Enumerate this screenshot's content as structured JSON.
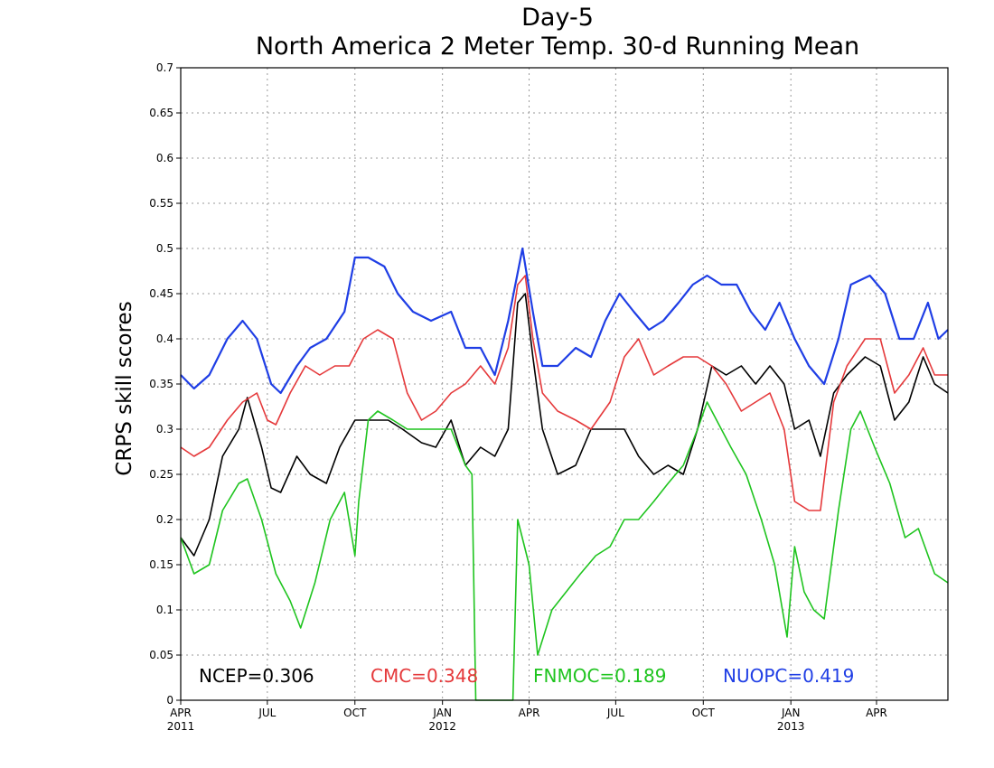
{
  "chart_data": {
    "type": "line",
    "title": "Day-5",
    "subtitle": "North America 2 Meter Temp. 30-d Running Mean",
    "ylabel": "CRPS skill scores",
    "xlabel": "",
    "ylim": [
      0,
      0.7
    ],
    "xlim": [
      "2011-04-01",
      "2013-06-15"
    ],
    "y_ticks": [
      "0",
      "0.05",
      "0.1",
      "0.15",
      "0.2",
      "0.25",
      "0.3",
      "0.35",
      "0.4",
      "0.45",
      "0.5",
      "0.55",
      "0.6",
      "0.65",
      "0.7"
    ],
    "x_ticks": [
      {
        "date": "2011-04-01",
        "label": "APR",
        "year": "2011"
      },
      {
        "date": "2011-07-01",
        "label": "JUL",
        "year": ""
      },
      {
        "date": "2011-10-01",
        "label": "OCT",
        "year": ""
      },
      {
        "date": "2012-01-01",
        "label": "JAN",
        "year": "2012"
      },
      {
        "date": "2012-04-01",
        "label": "APR",
        "year": ""
      },
      {
        "date": "2012-07-01",
        "label": "JUL",
        "year": ""
      },
      {
        "date": "2012-10-01",
        "label": "OCT",
        "year": ""
      },
      {
        "date": "2013-01-01",
        "label": "JAN",
        "year": "2013"
      },
      {
        "date": "2013-04-01",
        "label": "APR",
        "year": ""
      }
    ],
    "grid": true,
    "legend_position": "bottom",
    "series": [
      {
        "name": "NCEP",
        "legend": "NCEP=0.306",
        "color": "#000000",
        "points": [
          [
            "2011-04-01",
            0.18
          ],
          [
            "2011-04-15",
            0.16
          ],
          [
            "2011-05-01",
            0.2
          ],
          [
            "2011-05-15",
            0.27
          ],
          [
            "2011-06-01",
            0.3
          ],
          [
            "2011-06-10",
            0.335
          ],
          [
            "2011-06-25",
            0.28
          ],
          [
            "2011-07-05",
            0.235
          ],
          [
            "2011-07-15",
            0.23
          ],
          [
            "2011-08-01",
            0.27
          ],
          [
            "2011-08-15",
            0.25
          ],
          [
            "2011-09-01",
            0.24
          ],
          [
            "2011-09-15",
            0.28
          ],
          [
            "2011-10-01",
            0.31
          ],
          [
            "2011-10-20",
            0.31
          ],
          [
            "2011-11-05",
            0.31
          ],
          [
            "2011-11-20",
            0.3
          ],
          [
            "2011-12-10",
            0.285
          ],
          [
            "2011-12-25",
            0.28
          ],
          [
            "2012-01-10",
            0.31
          ],
          [
            "2012-01-25",
            0.26
          ],
          [
            "2012-02-10",
            0.28
          ],
          [
            "2012-02-25",
            0.27
          ],
          [
            "2012-03-10",
            0.3
          ],
          [
            "2012-03-20",
            0.44
          ],
          [
            "2012-03-28",
            0.45
          ],
          [
            "2012-04-05",
            0.38
          ],
          [
            "2012-04-15",
            0.3
          ],
          [
            "2012-05-01",
            0.25
          ],
          [
            "2012-05-20",
            0.26
          ],
          [
            "2012-06-05",
            0.3
          ],
          [
            "2012-06-25",
            0.3
          ],
          [
            "2012-07-10",
            0.3
          ],
          [
            "2012-07-25",
            0.27
          ],
          [
            "2012-08-10",
            0.25
          ],
          [
            "2012-08-25",
            0.26
          ],
          [
            "2012-09-10",
            0.25
          ],
          [
            "2012-09-25",
            0.3
          ],
          [
            "2012-10-10",
            0.37
          ],
          [
            "2012-10-25",
            0.36
          ],
          [
            "2012-11-10",
            0.37
          ],
          [
            "2012-11-25",
            0.35
          ],
          [
            "2012-12-10",
            0.37
          ],
          [
            "2012-12-25",
            0.35
          ],
          [
            "2013-01-05",
            0.3
          ],
          [
            "2013-01-20",
            0.31
          ],
          [
            "2013-02-01",
            0.27
          ],
          [
            "2013-02-15",
            0.34
          ],
          [
            "2013-03-01",
            0.36
          ],
          [
            "2013-03-20",
            0.38
          ],
          [
            "2013-04-05",
            0.37
          ],
          [
            "2013-04-20",
            0.31
          ],
          [
            "2013-05-05",
            0.33
          ],
          [
            "2013-05-20",
            0.38
          ],
          [
            "2013-06-01",
            0.35
          ],
          [
            "2013-06-15",
            0.34
          ]
        ]
      },
      {
        "name": "CMC",
        "legend": "CMC=0.348",
        "color": "#e5393b",
        "points": [
          [
            "2011-04-01",
            0.28
          ],
          [
            "2011-04-15",
            0.27
          ],
          [
            "2011-05-01",
            0.28
          ],
          [
            "2011-05-20",
            0.31
          ],
          [
            "2011-06-05",
            0.33
          ],
          [
            "2011-06-20",
            0.34
          ],
          [
            "2011-07-01",
            0.31
          ],
          [
            "2011-07-10",
            0.305
          ],
          [
            "2011-07-25",
            0.34
          ],
          [
            "2011-08-10",
            0.37
          ],
          [
            "2011-08-25",
            0.36
          ],
          [
            "2011-09-10",
            0.37
          ],
          [
            "2011-09-25",
            0.37
          ],
          [
            "2011-10-10",
            0.4
          ],
          [
            "2011-10-25",
            0.41
          ],
          [
            "2011-11-10",
            0.4
          ],
          [
            "2011-11-25",
            0.34
          ],
          [
            "2011-12-10",
            0.31
          ],
          [
            "2011-12-25",
            0.32
          ],
          [
            "2012-01-10",
            0.34
          ],
          [
            "2012-01-25",
            0.35
          ],
          [
            "2012-02-10",
            0.37
          ],
          [
            "2012-02-25",
            0.35
          ],
          [
            "2012-03-10",
            0.39
          ],
          [
            "2012-03-20",
            0.46
          ],
          [
            "2012-03-28",
            0.47
          ],
          [
            "2012-04-05",
            0.4
          ],
          [
            "2012-04-15",
            0.34
          ],
          [
            "2012-05-01",
            0.32
          ],
          [
            "2012-05-20",
            0.31
          ],
          [
            "2012-06-05",
            0.3
          ],
          [
            "2012-06-25",
            0.33
          ],
          [
            "2012-07-10",
            0.38
          ],
          [
            "2012-07-25",
            0.4
          ],
          [
            "2012-08-10",
            0.36
          ],
          [
            "2012-08-25",
            0.37
          ],
          [
            "2012-09-10",
            0.38
          ],
          [
            "2012-09-25",
            0.38
          ],
          [
            "2012-10-10",
            0.37
          ],
          [
            "2012-10-25",
            0.35
          ],
          [
            "2012-11-10",
            0.32
          ],
          [
            "2012-11-25",
            0.33
          ],
          [
            "2012-12-10",
            0.34
          ],
          [
            "2012-12-25",
            0.3
          ],
          [
            "2013-01-05",
            0.22
          ],
          [
            "2013-01-20",
            0.21
          ],
          [
            "2013-02-01",
            0.21
          ],
          [
            "2013-02-15",
            0.33
          ],
          [
            "2013-03-01",
            0.37
          ],
          [
            "2013-03-20",
            0.4
          ],
          [
            "2013-04-05",
            0.4
          ],
          [
            "2013-04-20",
            0.34
          ],
          [
            "2013-05-05",
            0.36
          ],
          [
            "2013-05-20",
            0.39
          ],
          [
            "2013-06-01",
            0.36
          ],
          [
            "2013-06-15",
            0.36
          ]
        ]
      },
      {
        "name": "FNMOC",
        "legend": "FNMOC=0.189",
        "color": "#1fc41f",
        "points": [
          [
            "2011-04-01",
            0.18
          ],
          [
            "2011-04-15",
            0.14
          ],
          [
            "2011-05-01",
            0.15
          ],
          [
            "2011-05-15",
            0.21
          ],
          [
            "2011-06-01",
            0.24
          ],
          [
            "2011-06-10",
            0.245
          ],
          [
            "2011-06-25",
            0.2
          ],
          [
            "2011-07-10",
            0.14
          ],
          [
            "2011-07-25",
            0.11
          ],
          [
            "2011-08-05",
            0.08
          ],
          [
            "2011-08-20",
            0.13
          ],
          [
            "2011-09-05",
            0.2
          ],
          [
            "2011-09-20",
            0.23
          ],
          [
            "2011-10-01",
            0.16
          ],
          [
            "2011-10-05",
            0.22
          ],
          [
            "2011-10-15",
            0.31
          ],
          [
            "2011-10-25",
            0.32
          ],
          [
            "2011-11-10",
            0.31
          ],
          [
            "2011-11-25",
            0.3
          ],
          [
            "2011-12-10",
            0.3
          ],
          [
            "2011-12-25",
            0.3
          ],
          [
            "2012-01-10",
            0.3
          ],
          [
            "2012-01-25",
            0.26
          ],
          [
            "2012-02-01",
            0.25
          ],
          [
            "2012-02-05",
            0.0
          ],
          [
            "2012-03-15",
            0.0
          ],
          [
            "2012-03-20",
            0.2
          ],
          [
            "2012-04-01",
            0.15
          ],
          [
            "2012-04-10",
            0.05
          ],
          [
            "2012-04-25",
            0.1
          ],
          [
            "2012-05-10",
            0.12
          ],
          [
            "2012-05-25",
            0.14
          ],
          [
            "2012-06-10",
            0.16
          ],
          [
            "2012-06-25",
            0.17
          ],
          [
            "2012-07-10",
            0.2
          ],
          [
            "2012-07-25",
            0.2
          ],
          [
            "2012-08-10",
            0.22
          ],
          [
            "2012-08-25",
            0.24
          ],
          [
            "2012-09-10",
            0.26
          ],
          [
            "2012-09-25",
            0.3
          ],
          [
            "2012-10-05",
            0.33
          ],
          [
            "2012-10-15",
            0.31
          ],
          [
            "2012-10-30",
            0.28
          ],
          [
            "2012-11-15",
            0.25
          ],
          [
            "2012-12-01",
            0.2
          ],
          [
            "2012-12-15",
            0.15
          ],
          [
            "2012-12-28",
            0.07
          ],
          [
            "2013-01-05",
            0.17
          ],
          [
            "2013-01-15",
            0.12
          ],
          [
            "2013-01-25",
            0.1
          ],
          [
            "2013-02-05",
            0.09
          ],
          [
            "2013-02-20",
            0.21
          ],
          [
            "2013-03-05",
            0.3
          ],
          [
            "2013-03-15",
            0.32
          ],
          [
            "2013-03-30",
            0.28
          ],
          [
            "2013-04-15",
            0.24
          ],
          [
            "2013-05-01",
            0.18
          ],
          [
            "2013-05-15",
            0.19
          ],
          [
            "2013-06-01",
            0.14
          ],
          [
            "2013-06-15",
            0.13
          ]
        ]
      },
      {
        "name": "NUOPC",
        "legend": "NUOPC=0.419",
        "color": "#1f3ee5",
        "points": [
          [
            "2011-04-01",
            0.36
          ],
          [
            "2011-04-15",
            0.345
          ],
          [
            "2011-05-01",
            0.36
          ],
          [
            "2011-05-20",
            0.4
          ],
          [
            "2011-06-05",
            0.42
          ],
          [
            "2011-06-20",
            0.4
          ],
          [
            "2011-07-05",
            0.35
          ],
          [
            "2011-07-15",
            0.34
          ],
          [
            "2011-08-01",
            0.37
          ],
          [
            "2011-08-15",
            0.39
          ],
          [
            "2011-09-01",
            0.4
          ],
          [
            "2011-09-20",
            0.43
          ],
          [
            "2011-10-01",
            0.49
          ],
          [
            "2011-10-15",
            0.49
          ],
          [
            "2011-11-01",
            0.48
          ],
          [
            "2011-11-15",
            0.45
          ],
          [
            "2011-12-01",
            0.43
          ],
          [
            "2011-12-20",
            0.42
          ],
          [
            "2012-01-10",
            0.43
          ],
          [
            "2012-01-25",
            0.39
          ],
          [
            "2012-02-10",
            0.39
          ],
          [
            "2012-02-25",
            0.36
          ],
          [
            "2012-03-10",
            0.42
          ],
          [
            "2012-03-25",
            0.5
          ],
          [
            "2012-04-05",
            0.43
          ],
          [
            "2012-04-15",
            0.37
          ],
          [
            "2012-05-01",
            0.37
          ],
          [
            "2012-05-20",
            0.39
          ],
          [
            "2012-06-05",
            0.38
          ],
          [
            "2012-06-20",
            0.42
          ],
          [
            "2012-07-05",
            0.45
          ],
          [
            "2012-07-20",
            0.43
          ],
          [
            "2012-08-05",
            0.41
          ],
          [
            "2012-08-20",
            0.42
          ],
          [
            "2012-09-05",
            0.44
          ],
          [
            "2012-09-20",
            0.46
          ],
          [
            "2012-10-05",
            0.47
          ],
          [
            "2012-10-20",
            0.46
          ],
          [
            "2012-11-05",
            0.46
          ],
          [
            "2012-11-20",
            0.43
          ],
          [
            "2012-12-05",
            0.41
          ],
          [
            "2012-12-20",
            0.44
          ],
          [
            "2013-01-05",
            0.4
          ],
          [
            "2013-01-20",
            0.37
          ],
          [
            "2013-02-05",
            0.35
          ],
          [
            "2013-02-20",
            0.4
          ],
          [
            "2013-03-05",
            0.46
          ],
          [
            "2013-03-25",
            0.47
          ],
          [
            "2013-04-10",
            0.45
          ],
          [
            "2013-04-25",
            0.4
          ],
          [
            "2013-05-10",
            0.4
          ],
          [
            "2013-05-25",
            0.44
          ],
          [
            "2013-06-05",
            0.4
          ],
          [
            "2013-06-15",
            0.41
          ]
        ]
      }
    ]
  }
}
